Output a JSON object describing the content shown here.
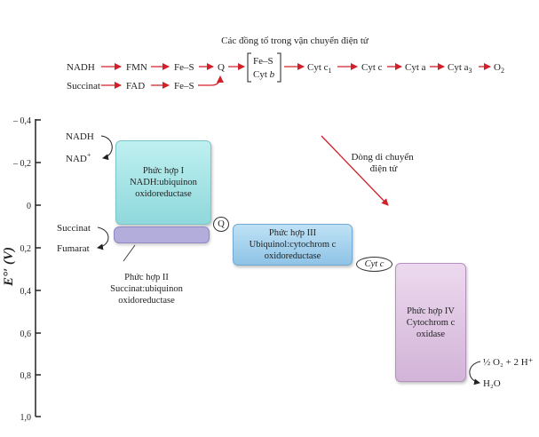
{
  "chain": {
    "title": "Các đồng tố trong vận chuyển điện tử",
    "row1": [
      "NADH",
      "FMN",
      "Fe–S",
      "Q"
    ],
    "bracket_items": [
      "Fe–S",
      "Cyt b"
    ],
    "row1_tail": [
      "Cyt c",
      "Cyt c",
      "Cyt a",
      "Cyt a",
      "O"
    ],
    "row1_subscripts": [
      "1",
      "3",
      "2"
    ],
    "row2": [
      "Succinat",
      "FAD",
      "Fe–S"
    ]
  },
  "axis": {
    "label": "E°′ (V)",
    "ticks": [
      "– 0,4",
      "– 0,2",
      "0",
      "0,2",
      "0,4",
      "0,6",
      "0,8",
      "1,0"
    ]
  },
  "complex1": {
    "substrate_in": "NADH",
    "substrate_out": "NAD+",
    "lines": [
      "Phức hợp I",
      "NADH:ubiquinon",
      "oxidoreductase"
    ]
  },
  "complex2": {
    "substrate_in": "Succinat",
    "substrate_out": "Fumarat",
    "lines": [
      "Phức hợp II",
      "Succinat:ubiquinon",
      "oxidoreductase"
    ]
  },
  "complex3": {
    "lines": [
      "Phức hợp III",
      "Ubiquinol:cytochrom c",
      "oxidoreductase"
    ]
  },
  "complex4": {
    "lines": [
      "Phức hợp IV",
      "Cytochrom c",
      "oxidase"
    ],
    "substrate_in": "½ O₂ + 2 H⁺",
    "product": "H₂O"
  },
  "carriers": {
    "q": "Q",
    "cyt_c": "Cyt c"
  },
  "flow_label": [
    "Dòng di chuyển",
    "điện tử"
  ],
  "colors": {
    "arrow_red": "#d0202a",
    "complex1": "#a9e3e6",
    "complex2": "#b3addb",
    "complex3": "#a6d0ee",
    "complex4": "#dcc3e0"
  }
}
